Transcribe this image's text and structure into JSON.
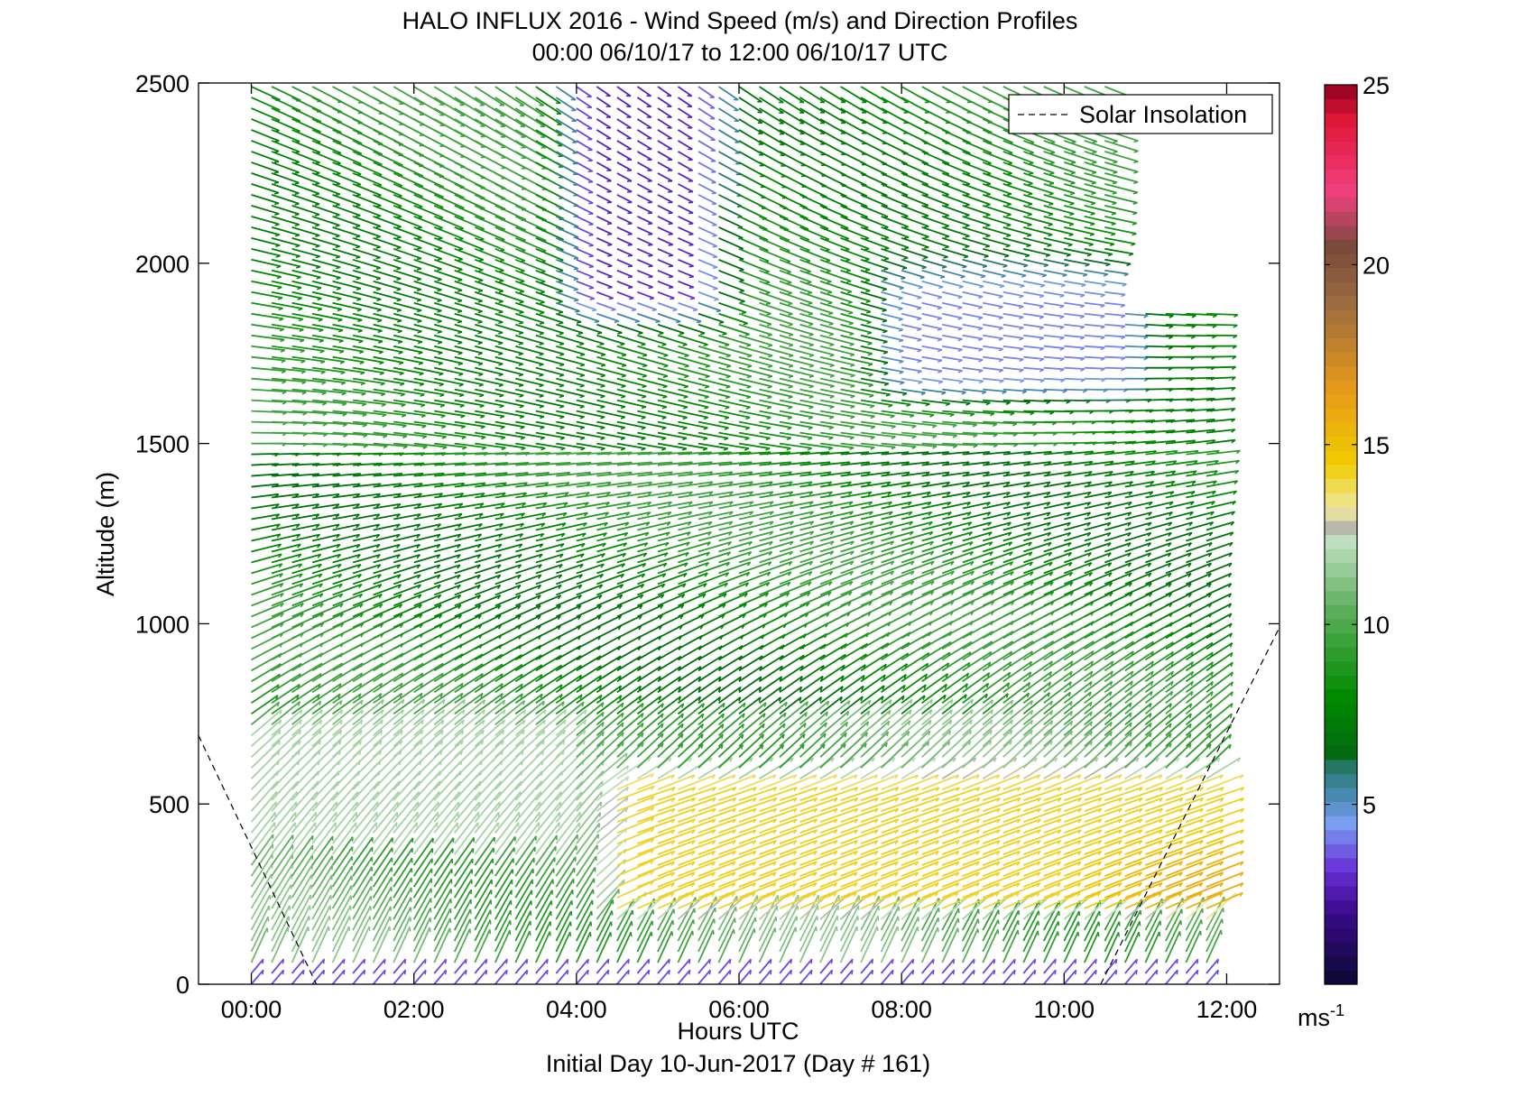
{
  "chart_data": {
    "type": "wind-barb profile",
    "title": "HALO INFLUX 2016 - Wind Speed (m/s) and Direction Profiles",
    "subtitle": "00:00 06/10/17 to 12:00 06/10/17  UTC",
    "xlabel": "Hours UTC",
    "ylabel": "Altitude (m)",
    "footer": "Initial Day 10-Jun-2017 (Day # 161)",
    "xlim_hours": [
      -0.65,
      12.65
    ],
    "ylim": [
      0,
      2500
    ],
    "x_ticks": [
      {
        "value": 0,
        "label": "00:00"
      },
      {
        "value": 2,
        "label": "02:00"
      },
      {
        "value": 4,
        "label": "04:00"
      },
      {
        "value": 6,
        "label": "06:00"
      },
      {
        "value": 8,
        "label": "08:00"
      },
      {
        "value": 10,
        "label": "10:00"
      },
      {
        "value": 12,
        "label": "12:00"
      }
    ],
    "y_ticks": [
      {
        "value": 0,
        "label": "0"
      },
      {
        "value": 500,
        "label": "500"
      },
      {
        "value": 1000,
        "label": "1000"
      },
      {
        "value": 1500,
        "label": "1500"
      },
      {
        "value": 2000,
        "label": "2000"
      },
      {
        "value": 2500,
        "label": "2500"
      }
    ],
    "colorbar": {
      "range": [
        0,
        25
      ],
      "ticks": [
        {
          "value": 25,
          "label": "25"
        },
        {
          "value": 20,
          "label": "20"
        },
        {
          "value": 15,
          "label": "15"
        },
        {
          "value": 10,
          "label": "10"
        },
        {
          "value": 5,
          "label": "5"
        }
      ],
      "unit_label": "ms",
      "unit_exponent": "-1",
      "stops": [
        {
          "v": 0,
          "c": "#0a0830"
        },
        {
          "v": 2,
          "c": "#3a0a8a"
        },
        {
          "v": 3.2,
          "c": "#6a30d8"
        },
        {
          "v": 4.5,
          "c": "#7aa0f0"
        },
        {
          "v": 5.2,
          "c": "#4a8ab8"
        },
        {
          "v": 6,
          "c": "#2a7a70"
        },
        {
          "v": 6.4,
          "c": "#006a10"
        },
        {
          "v": 8,
          "c": "#008a00"
        },
        {
          "v": 10.5,
          "c": "#60b060"
        },
        {
          "v": 12.3,
          "c": "#c0e0c0"
        },
        {
          "v": 12.6,
          "c": "#b0b0b0"
        },
        {
          "v": 13.2,
          "c": "#f0e8a0"
        },
        {
          "v": 14.5,
          "c": "#f0cc00"
        },
        {
          "v": 16.5,
          "c": "#e89a18"
        },
        {
          "v": 19,
          "c": "#9a6a40"
        },
        {
          "v": 20.5,
          "c": "#7a4a3a"
        },
        {
          "v": 22,
          "c": "#f04080"
        },
        {
          "v": 24,
          "c": "#e01838"
        },
        {
          "v": 25,
          "c": "#900020"
        }
      ]
    },
    "legend": {
      "label": "Solar Insolation",
      "style": "dashed",
      "placement": "top-right"
    },
    "solar_insolation": {
      "morning": [
        {
          "x": -0.65,
          "y": 690
        },
        {
          "x": 0.8,
          "y": 0
        }
      ],
      "evening": [
        {
          "x": 10.45,
          "y": 0
        },
        {
          "x": 12.65,
          "y": 990
        }
      ]
    },
    "wind_field": {
      "time_range_hours": [
        0,
        11.75
      ],
      "time_step_hours": 0.25,
      "altitude_range": [
        0,
        2500
      ],
      "altitude_step": 30,
      "direction_convention": "degrees clockwise from north, direction the wind blows toward",
      "data_top_after_10_30": 1880,
      "regimes": [
        {
          "name": "surface layer",
          "altitude": [
            0,
            40
          ],
          "speed_ms": 3.5,
          "direction_deg": 40
        },
        {
          "name": "nocturnal jet",
          "altitude": [
            150,
            600
          ],
          "time_hours": [
            4,
            11.75
          ],
          "speed_ms": 14.5,
          "direction_deg": 70
        },
        {
          "name": "lower layer",
          "altitude": [
            40,
            750
          ],
          "speed_ms": 11,
          "direction_deg": 25
        },
        {
          "name": "mid layer",
          "altitude": [
            750,
            1500
          ],
          "speed_ms": 9,
          "direction_deg": 70
        },
        {
          "name": "upper slow core",
          "altitude": [
            1800,
            2500
          ],
          "time_hours": [
            3.3,
            5.6
          ],
          "speed_ms": 3,
          "direction_deg": 95
        },
        {
          "name": "upper layer",
          "altitude": [
            1500,
            2500
          ],
          "speed_ms": 8.5,
          "direction_deg": 110
        }
      ]
    }
  }
}
